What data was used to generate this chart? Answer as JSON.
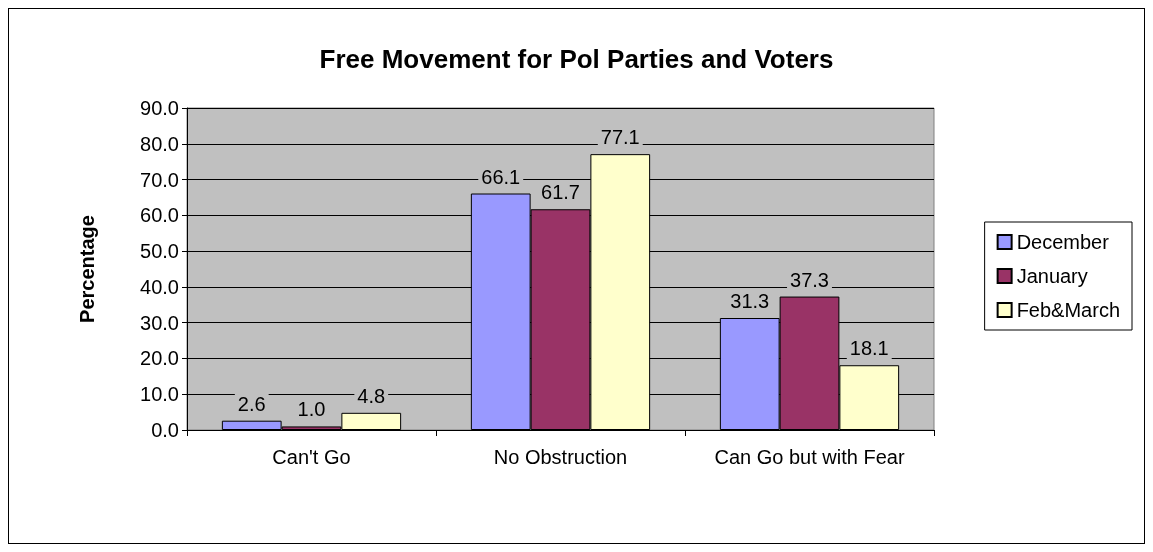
{
  "chart_data": {
    "type": "bar",
    "title": "Free Movement for Pol Parties and Voters",
    "ylabel": "Percentage",
    "categories": [
      "Can't Go",
      "No Obstruction",
      "Can Go but with Fear"
    ],
    "series": [
      {
        "name": "December",
        "color": "#9999ff",
        "values": [
          2.6,
          66.1,
          31.3
        ],
        "value_labels": [
          "2.6",
          "66.1",
          "31.3"
        ]
      },
      {
        "name": "January",
        "color": "#993366",
        "values": [
          1.0,
          61.7,
          37.3
        ],
        "value_labels": [
          "1.0",
          "61.7",
          "37.3"
        ]
      },
      {
        "name": "Feb&March",
        "color": "#ffffcc",
        "values": [
          4.8,
          77.1,
          18.1
        ],
        "value_labels": [
          "4.8",
          "77.1",
          "18.1"
        ]
      }
    ],
    "ylim": [
      0,
      90
    ],
    "yticks": [
      {
        "value": 0,
        "label": "0.0"
      },
      {
        "value": 10,
        "label": "10.0"
      },
      {
        "value": 20,
        "label": "20.0"
      },
      {
        "value": 30,
        "label": "30.0"
      },
      {
        "value": 40,
        "label": "40.0"
      },
      {
        "value": 50,
        "label": "50.0"
      },
      {
        "value": 60,
        "label": "60.0"
      },
      {
        "value": 70,
        "label": "70.0"
      },
      {
        "value": 80,
        "label": "80.0"
      },
      {
        "value": 90,
        "label": "90.0"
      }
    ],
    "grid": "y",
    "legend": "right"
  }
}
